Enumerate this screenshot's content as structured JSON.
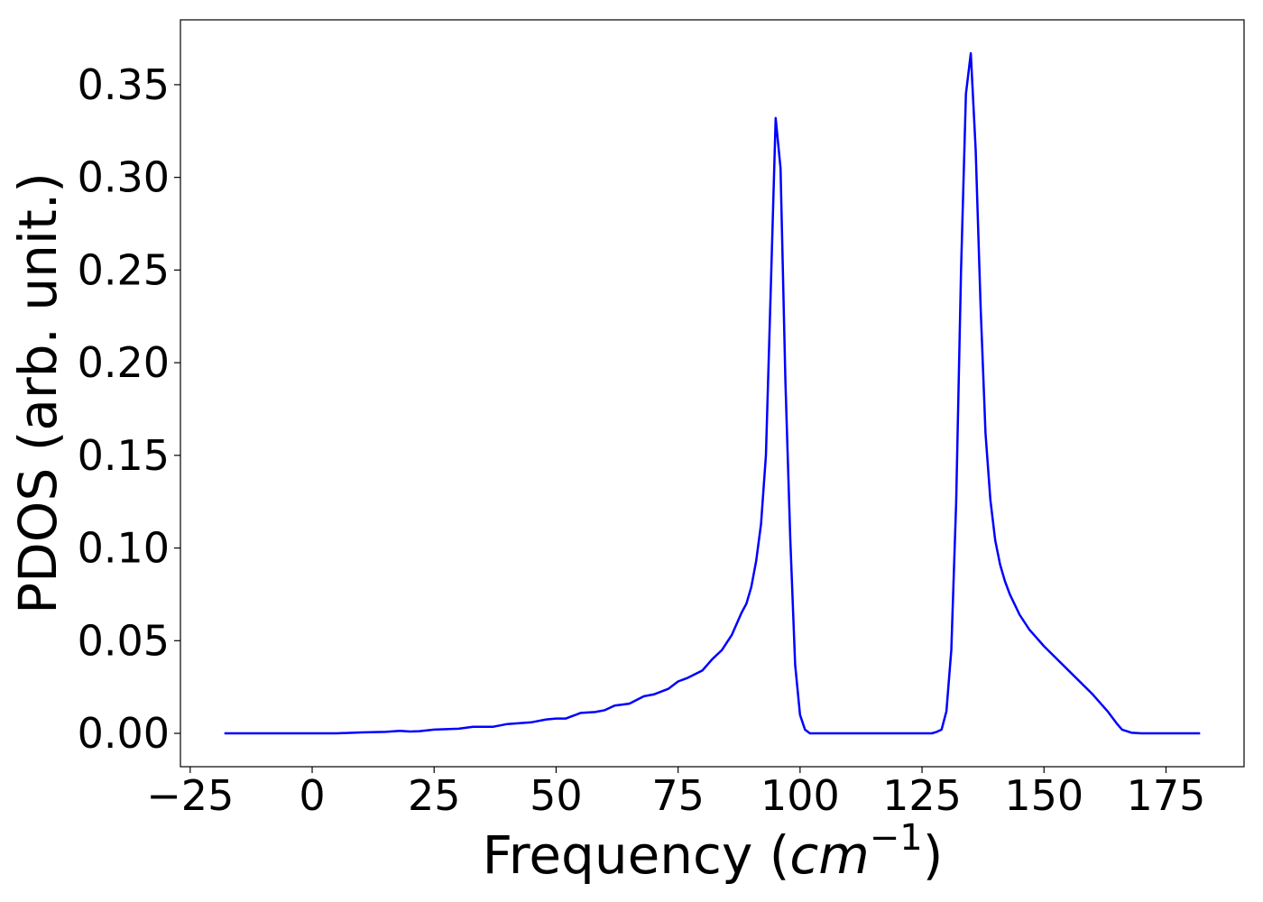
{
  "chart_data": {
    "type": "line",
    "title": "",
    "xlabel": "Frequency",
    "xlabel_unit": "cm",
    "xlabel_unit_exponent": "−1",
    "ylabel": "PDOS (arb. unit.)",
    "xlim": [
      -27,
      191
    ],
    "ylim": [
      -0.018,
      0.385
    ],
    "x_ticks": [
      -25,
      0,
      25,
      50,
      75,
      100,
      125,
      150,
      175
    ],
    "x_tick_labels": [
      "−25",
      "0",
      "25",
      "50",
      "75",
      "100",
      "125",
      "150",
      "175"
    ],
    "y_ticks": [
      0.0,
      0.05,
      0.1,
      0.15,
      0.2,
      0.25,
      0.3,
      0.35
    ],
    "y_tick_labels": [
      "0.00",
      "0.05",
      "0.10",
      "0.15",
      "0.20",
      "0.25",
      "0.30",
      "0.35"
    ],
    "grid": false,
    "legend": "none",
    "series": [
      {
        "color": "#0000ff",
        "x": [
          -18,
          0,
          5,
          10,
          15,
          18,
          20,
          22,
          25,
          30,
          33,
          37,
          40,
          45,
          48,
          50,
          52,
          55,
          58,
          60,
          62,
          65,
          68,
          70,
          73,
          75,
          77,
          80,
          82,
          84,
          86,
          88,
          89,
          90,
          91,
          92,
          93,
          94,
          95,
          96,
          97,
          98,
          99,
          100,
          101,
          102,
          105,
          110,
          120,
          127,
          128,
          129,
          130,
          131,
          132,
          133,
          134,
          135,
          136,
          137,
          138,
          139,
          140,
          141,
          142,
          143,
          145,
          147,
          150,
          155,
          160,
          163,
          165,
          166,
          168,
          170,
          175,
          182
        ],
        "y": [
          0.0,
          0.0,
          0.0,
          0.0005,
          0.0008,
          0.0013,
          0.001,
          0.0012,
          0.002,
          0.0025,
          0.0035,
          0.0035,
          0.005,
          0.006,
          0.0075,
          0.008,
          0.008,
          0.011,
          0.0115,
          0.0125,
          0.015,
          0.016,
          0.02,
          0.021,
          0.024,
          0.028,
          0.03,
          0.034,
          0.04,
          0.045,
          0.053,
          0.065,
          0.07,
          0.079,
          0.093,
          0.113,
          0.15,
          0.24,
          0.332,
          0.305,
          0.19,
          0.105,
          0.037,
          0.01,
          0.002,
          0.0,
          0.0,
          0.0,
          0.0,
          0.0,
          0.0008,
          0.002,
          0.012,
          0.045,
          0.125,
          0.25,
          0.345,
          0.367,
          0.315,
          0.23,
          0.162,
          0.126,
          0.104,
          0.091,
          0.082,
          0.075,
          0.064,
          0.056,
          0.047,
          0.034,
          0.021,
          0.012,
          0.005,
          0.002,
          0.0003,
          0.0,
          0.0,
          0.0
        ]
      }
    ]
  }
}
